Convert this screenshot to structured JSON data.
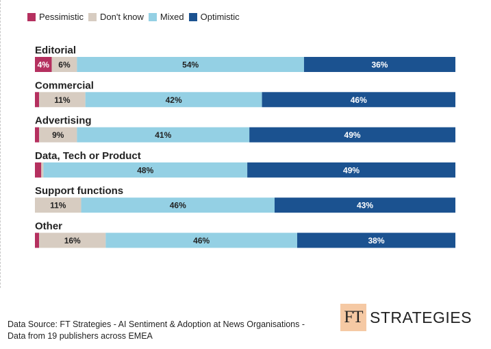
{
  "legend": [
    {
      "label": "Pessimistic",
      "color": "#b5305f"
    },
    {
      "label": "Don't know",
      "color": "#d7ccc1"
    },
    {
      "label": "Mixed",
      "color": "#94d0e4"
    },
    {
      "label": "Optimistic",
      "color": "#1b5290"
    }
  ],
  "chart_data": {
    "type": "bar",
    "orientation": "horizontal",
    "stacked": true,
    "normalized": true,
    "categories": [
      "Editorial",
      "Commercial",
      "Advertising",
      "Data, Tech or Product",
      "Support functions",
      "Other"
    ],
    "series": [
      {
        "name": "Pessimistic",
        "color": "#b5305f",
        "values": [
          4,
          1,
          1,
          1.5,
          0,
          1
        ],
        "labels": [
          "4%",
          "",
          "",
          "",
          "",
          ""
        ]
      },
      {
        "name": "Don't know",
        "color": "#d7ccc1",
        "values": [
          6,
          11,
          9,
          0.5,
          11,
          16
        ],
        "labels": [
          "6%",
          "11%",
          "9%",
          "",
          "11%",
          "16%"
        ]
      },
      {
        "name": "Mixed",
        "color": "#94d0e4",
        "values": [
          54,
          42,
          41,
          48,
          46,
          46
        ],
        "labels": [
          "54%",
          "42%",
          "41%",
          "48%",
          "46%",
          "46%"
        ]
      },
      {
        "name": "Optimistic",
        "color": "#1b5290",
        "values": [
          36,
          46,
          49,
          49,
          43,
          38
        ],
        "labels": [
          "36%",
          "46%",
          "49%",
          "49%",
          "43%",
          "38%"
        ]
      }
    ],
    "legend_position": "top-left",
    "grid": false
  },
  "source": {
    "line1": "Data Source: FT Strategies - AI Sentiment & Adoption at News Organisations -",
    "line2": "Data from 19 publishers across EMEA"
  },
  "logo": {
    "mark": "FT",
    "text": "STRATEGIES"
  }
}
